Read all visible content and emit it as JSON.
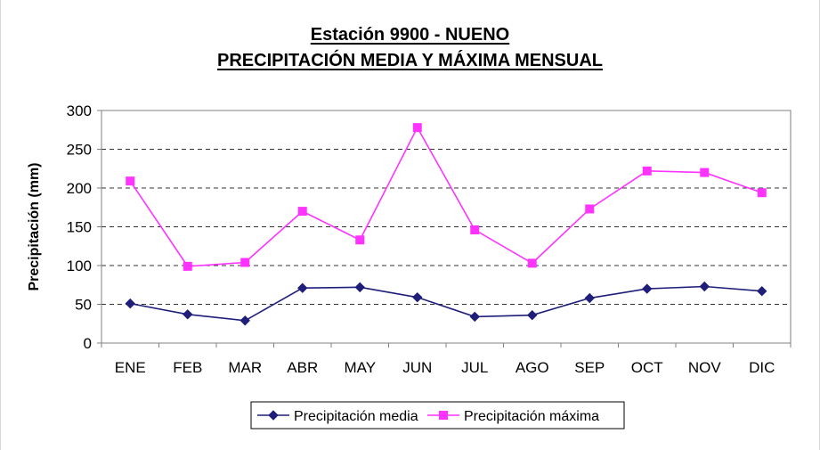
{
  "chart_data": {
    "type": "line",
    "title": "Estación 9900 - NUENO",
    "subtitle": "PRECIPITACIÓN MEDIA Y MÁXIMA MENSUAL",
    "ylabel": "Precipitación (mm)",
    "xlabel": "",
    "ylim": [
      0,
      300
    ],
    "yticks": [
      0,
      50,
      100,
      150,
      200,
      250,
      300
    ],
    "grid": "horizontal-dashed",
    "legend": "bottom",
    "categories": [
      "ENE",
      "FEB",
      "MAR",
      "ABR",
      "MAY",
      "JUN",
      "JUL",
      "AGO",
      "SEP",
      "OCT",
      "NOV",
      "DIC"
    ],
    "series": [
      {
        "name": "Precipitación media",
        "color": "#1f1f7a",
        "marker": "diamond",
        "values": [
          51,
          37,
          29,
          71,
          72,
          59,
          34,
          36,
          58,
          70,
          73,
          67
        ]
      },
      {
        "name": "Precipitación máxima",
        "color": "#ff33ff",
        "marker": "square",
        "values": [
          209,
          99,
          104,
          170,
          133,
          278,
          146,
          103,
          173,
          222,
          220,
          194
        ]
      }
    ]
  }
}
